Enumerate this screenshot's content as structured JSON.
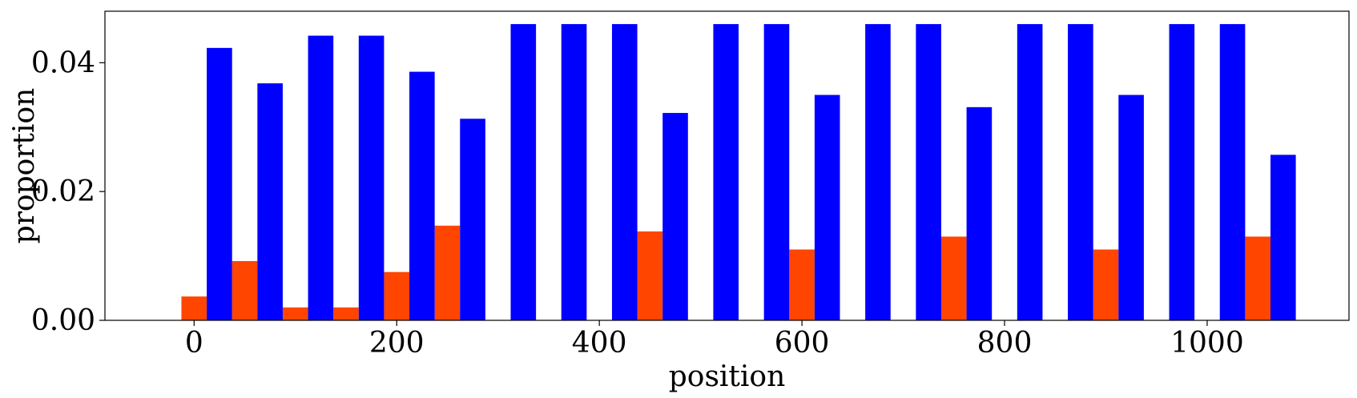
{
  "chart_data": {
    "type": "bar",
    "xlabel": "position",
    "ylabel": "proportion",
    "xlim": [
      -88,
      1140
    ],
    "ylim": [
      0,
      0.048
    ],
    "xticks": [
      0,
      200,
      400,
      600,
      800,
      1000
    ],
    "xtick_labels": [
      "0",
      "200",
      "400",
      "600",
      "800",
      "1000"
    ],
    "yticks": [
      0.0,
      0.02,
      0.04
    ],
    "ytick_labels": [
      "0.00",
      "0.02",
      "0.04"
    ],
    "grid": false,
    "bar_width": 25,
    "series": [
      {
        "color": "#ff4500",
        "x": [
          0,
          50,
          100,
          150,
          200,
          250,
          300,
          350,
          400,
          450,
          500,
          550,
          600,
          650,
          700,
          750,
          800,
          850,
          900,
          950,
          1000,
          1050
        ],
        "values": [
          0.0037,
          0.0092,
          0.002,
          0.002,
          0.0075,
          0.0147,
          0,
          0,
          0,
          0.0138,
          0,
          0,
          0.011,
          0,
          0,
          0.013,
          0,
          0,
          0.011,
          0,
          0,
          0.013
        ]
      },
      {
        "color": "#0000ff",
        "x": [
          25,
          75,
          125,
          175,
          225,
          275,
          325,
          375,
          425,
          475,
          525,
          575,
          625,
          675,
          725,
          775,
          825,
          875,
          925,
          975,
          1025,
          1075
        ],
        "values": [
          0.0423,
          0.0368,
          0.0442,
          0.0442,
          0.0386,
          0.0313,
          0.046,
          0.046,
          0.046,
          0.0322,
          0.046,
          0.046,
          0.035,
          0.046,
          0.046,
          0.0331,
          0.046,
          0.046,
          0.035,
          0.046,
          0.046,
          0.0257
        ]
      }
    ]
  }
}
